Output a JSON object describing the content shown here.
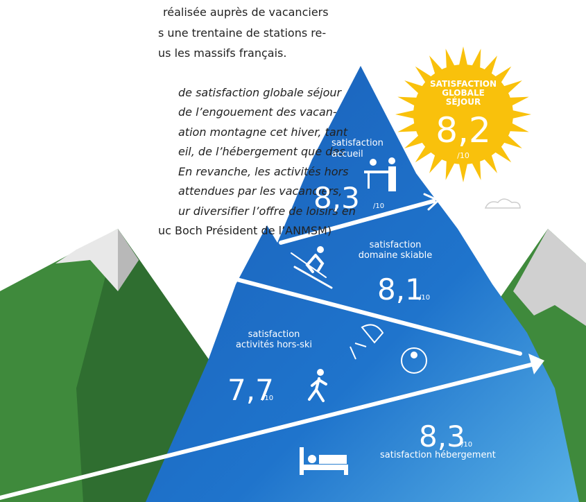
{
  "intro": {
    "lines": [
      "réalisée auprès de vacanciers",
      "s une trentaine de stations re-",
      "us les massifs français."
    ]
  },
  "quote": {
    "lines": [
      "de satisfaction globale séjour",
      "de l’engouement des vacan-",
      "ation montagne cet hiver, tant",
      "eil, de l’hébergement que des",
      "En revanche, les activités hors",
      "attendues par les vacanciers,",
      "ur diversifier l’offre de loisirs en"
    ],
    "attribution": "uc Boch Président de l’ANMSM)"
  },
  "global": {
    "title_lines": [
      "SATISFACTION",
      "GLOBALE",
      "SÉJOUR"
    ],
    "score": "8,2",
    "scale": "/10"
  },
  "ratings": [
    {
      "label_lines": [
        "satisfaction",
        "accueil"
      ],
      "score": "8,3",
      "scale": "/10"
    },
    {
      "label_lines": [
        "satisfaction",
        "domaine skiable"
      ],
      "score": "8,1",
      "scale": "/10"
    },
    {
      "label_lines": [
        "satisfaction",
        "activités hors-ski"
      ],
      "score": "7,7",
      "scale": "/10"
    },
    {
      "label_lines": [
        "satisfaction hébergement"
      ],
      "score": "8,3",
      "scale": "/10"
    }
  ]
}
